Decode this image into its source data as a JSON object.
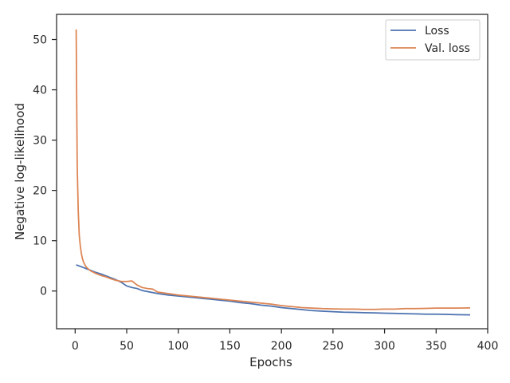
{
  "chart_data": {
    "type": "line",
    "title": "",
    "xlabel": "Epochs",
    "ylabel": "Negative log-likelihood",
    "xlim": [
      -18,
      400
    ],
    "ylim": [
      -7.5,
      55
    ],
    "xticks": [
      0,
      50,
      100,
      150,
      200,
      250,
      300,
      350,
      400
    ],
    "yticks": [
      0,
      10,
      20,
      30,
      40,
      50
    ],
    "grid": false,
    "legend_position": "top-right",
    "series": [
      {
        "name": "Loss",
        "color": "#4c72b0",
        "x": [
          1,
          5,
          10,
          15,
          20,
          25,
          30,
          35,
          40,
          45,
          50,
          55,
          60,
          65,
          70,
          75,
          80,
          90,
          100,
          110,
          120,
          130,
          140,
          150,
          160,
          170,
          180,
          190,
          200,
          210,
          220,
          230,
          240,
          250,
          260,
          270,
          280,
          290,
          300,
          310,
          320,
          330,
          340,
          350,
          360,
          370,
          383
        ],
        "y": [
          5.2,
          4.9,
          4.5,
          4.1,
          3.7,
          3.4,
          3.0,
          2.6,
          2.2,
          1.7,
          1.0,
          0.7,
          0.5,
          0.1,
          -0.1,
          -0.3,
          -0.5,
          -0.8,
          -1.0,
          -1.2,
          -1.4,
          -1.6,
          -1.8,
          -2.0,
          -2.3,
          -2.5,
          -2.8,
          -3.0,
          -3.3,
          -3.5,
          -3.7,
          -3.9,
          -4.0,
          -4.1,
          -4.2,
          -4.25,
          -4.3,
          -4.35,
          -4.4,
          -4.45,
          -4.5,
          -4.55,
          -4.6,
          -4.6,
          -4.65,
          -4.7,
          -4.75
        ]
      },
      {
        "name": "Val. loss",
        "color": "#dd8452",
        "x": [
          1,
          1.5,
          2,
          3,
          4,
          5,
          6,
          7,
          8,
          10,
          12,
          15,
          20,
          25,
          30,
          35,
          40,
          45,
          50,
          55,
          60,
          65,
          70,
          75,
          80,
          90,
          100,
          110,
          120,
          130,
          140,
          150,
          160,
          170,
          180,
          190,
          200,
          210,
          220,
          230,
          240,
          250,
          260,
          270,
          280,
          290,
          300,
          310,
          320,
          330,
          340,
          350,
          360,
          370,
          383
        ],
        "y": [
          52,
          38,
          25,
          16,
          11,
          9,
          7.5,
          6.5,
          5.8,
          5.0,
          4.5,
          4.0,
          3.5,
          3.1,
          2.8,
          2.4,
          2.1,
          1.9,
          1.9,
          2.0,
          1.2,
          0.7,
          0.5,
          0.4,
          -0.2,
          -0.5,
          -0.8,
          -1.0,
          -1.2,
          -1.4,
          -1.6,
          -1.8,
          -2.0,
          -2.2,
          -2.4,
          -2.6,
          -2.9,
          -3.1,
          -3.3,
          -3.4,
          -3.5,
          -3.55,
          -3.6,
          -3.6,
          -3.65,
          -3.65,
          -3.6,
          -3.6,
          -3.5,
          -3.5,
          -3.45,
          -3.4,
          -3.4,
          -3.4,
          -3.35
        ]
      }
    ]
  }
}
